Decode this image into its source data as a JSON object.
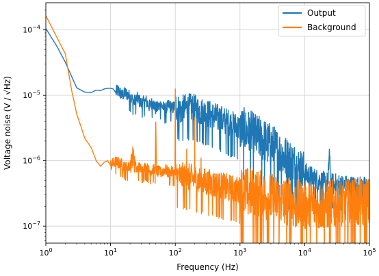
{
  "colors": {
    "output": "#1f77b4",
    "background": "#ff7f0e",
    "grid": "#d0d0d0",
    "axis": "#000000"
  },
  "chart_data": {
    "type": "line",
    "xlabel": "Frequency (Hz)",
    "ylabel": "Voltage noise (V / √Hz)",
    "xscale": "log",
    "yscale": "log",
    "xlim": [
      1,
      100000
    ],
    "ylim": [
      5.5e-08,
      0.00026
    ],
    "grid": true,
    "legend_position": "top-right",
    "x_ticks": [
      {
        "value": 1,
        "base": "10",
        "exp": "0"
      },
      {
        "value": 10,
        "base": "10",
        "exp": "1"
      },
      {
        "value": 100,
        "base": "10",
        "exp": "2"
      },
      {
        "value": 1000,
        "base": "10",
        "exp": "3"
      },
      {
        "value": 10000,
        "base": "10",
        "exp": "4"
      },
      {
        "value": 100000,
        "base": "10",
        "exp": "5"
      }
    ],
    "y_ticks": [
      {
        "value": 1e-07,
        "base": "10",
        "exp": "−7"
      },
      {
        "value": 1e-06,
        "base": "10",
        "exp": "−6"
      },
      {
        "value": 1e-05,
        "base": "10",
        "exp": "−5"
      },
      {
        "value": 0.0001,
        "base": "10",
        "exp": "−4"
      }
    ],
    "series": [
      {
        "name": "Output",
        "color": "#1f77b4",
        "points": [
          [
            1,
            0.000105
          ],
          [
            1.5,
            5.5e-05
          ],
          [
            2,
            3.2e-05
          ],
          [
            3,
            1.3e-05
          ],
          [
            4,
            1.12e-05
          ],
          [
            5,
            1.1e-05
          ],
          [
            6,
            1.2e-05
          ],
          [
            7,
            1.18e-05
          ],
          [
            8,
            1.25e-05
          ],
          [
            9,
            1.28e-05
          ],
          [
            10,
            1.28e-05
          ],
          [
            11,
            1.25e-05
          ],
          [
            12,
            1.1e-05
          ],
          [
            13,
            1.2e-05
          ],
          [
            15,
            1e-05
          ],
          [
            17,
            1.08e-05
          ],
          [
            20,
            9.5e-06
          ],
          [
            23,
            8e-06
          ],
          [
            26,
            9e-06
          ],
          [
            30,
            7.5e-06
          ],
          [
            35,
            8.2e-06
          ],
          [
            40,
            6.8e-06
          ],
          [
            45,
            7.8e-06
          ],
          [
            50,
            6.2e-06
          ],
          [
            60,
            7.2e-06
          ],
          [
            70,
            6e-06
          ],
          [
            80,
            7e-06
          ],
          [
            90,
            6.3e-06
          ],
          [
            100,
            6.9e-06
          ],
          [
            120,
            5.8e-06
          ],
          [
            150,
            6.5e-06
          ],
          [
            200,
            6.2e-06
          ],
          [
            250,
            5.6e-06
          ],
          [
            300,
            5.3e-06
          ],
          [
            400,
            4.7e-06
          ],
          [
            500,
            4.3e-06
          ],
          [
            600,
            3.9e-06
          ],
          [
            800,
            3.4e-06
          ],
          [
            1000,
            3.1e-06
          ],
          [
            1500,
            2.6e-06
          ],
          [
            2000,
            2.2e-06
          ],
          [
            3000,
            1.7e-06
          ],
          [
            4000,
            1.35e-06
          ],
          [
            5000,
            1.1e-06
          ],
          [
            7000,
            8.5e-07
          ],
          [
            10000,
            6.3e-07
          ],
          [
            15000,
            5.1e-07
          ],
          [
            20000,
            4.6e-07
          ],
          [
            23000,
            4.5e-07
          ],
          [
            24000,
            1.5e-06
          ],
          [
            25000,
            4.4e-07
          ],
          [
            30000,
            4.3e-07
          ],
          [
            40000,
            4.1e-07
          ],
          [
            50000,
            4e-07
          ],
          [
            70000,
            3.9e-07
          ],
          [
            100000,
            3.8e-07
          ]
        ],
        "noise": [
          {
            "x": [
              12,
              100
            ],
            "width": 0.2
          },
          {
            "x": [
              100,
              1000
            ],
            "width": 0.45
          },
          {
            "x": [
              1000,
              10000
            ],
            "width": 0.7
          },
          {
            "x": [
              10000,
              100000
            ],
            "width": 0.35
          }
        ]
      },
      {
        "name": "Background",
        "color": "#ff7f0e",
        "points": [
          [
            1,
            0.000165
          ],
          [
            1.5,
            7.5e-05
          ],
          [
            2,
            4.3e-05
          ],
          [
            2.5,
            1.2e-05
          ],
          [
            3,
            5.2e-06
          ],
          [
            3.5,
            3.3e-06
          ],
          [
            4,
            2.2e-06
          ],
          [
            5,
            1.6e-06
          ],
          [
            6,
            1e-06
          ],
          [
            7,
            8.2e-07
          ],
          [
            8,
            9.5e-07
          ],
          [
            9,
            1e-06
          ],
          [
            10,
            8.5e-07
          ],
          [
            12,
            9.6e-07
          ],
          [
            15,
            8.8e-07
          ],
          [
            18,
            7.6e-07
          ],
          [
            20,
            8.5e-07
          ],
          [
            22,
            1.4e-06
          ],
          [
            25,
            7.2e-07
          ],
          [
            28,
            8e-07
          ],
          [
            30,
            7e-07
          ],
          [
            35,
            8e-07
          ],
          [
            40,
            6.8e-07
          ],
          [
            45,
            7.3e-07
          ],
          [
            49,
            7e-07
          ],
          [
            50,
            3.9e-06
          ],
          [
            51,
            7e-07
          ],
          [
            60,
            6.6e-07
          ],
          [
            70,
            7.4e-07
          ],
          [
            80,
            6.4e-07
          ],
          [
            90,
            6.8e-07
          ],
          [
            99,
            6.2e-07
          ],
          [
            100,
            1.25e-05
          ],
          [
            101,
            6e-07
          ],
          [
            120,
            5.7e-07
          ],
          [
            149,
            5.5e-07
          ],
          [
            150,
            1.5e-06
          ],
          [
            151,
            5.5e-07
          ],
          [
            199,
            5.2e-07
          ],
          [
            200,
            4.6e-06
          ],
          [
            201,
            5.2e-07
          ],
          [
            249,
            4.8e-07
          ],
          [
            250,
            1.1e-06
          ],
          [
            251,
            4.8e-07
          ],
          [
            300,
            4.6e-07
          ],
          [
            400,
            4.3e-07
          ],
          [
            500,
            4e-07
          ],
          [
            700,
            3.7e-07
          ],
          [
            1000,
            3.4e-07
          ],
          [
            1500,
            3.1e-07
          ],
          [
            2000,
            2.9e-07
          ],
          [
            3000,
            2.6e-07
          ],
          [
            5000,
            2.3e-07
          ],
          [
            7000,
            2.1e-07
          ],
          [
            10000,
            2e-07
          ],
          [
            15000,
            2e-07
          ],
          [
            20000,
            2.05e-07
          ],
          [
            30000,
            2.1e-07
          ],
          [
            50000,
            2.15e-07
          ],
          [
            100000,
            2.2e-07
          ]
        ],
        "noise": [
          {
            "x": [
              10,
              100
            ],
            "width": 0.18
          },
          {
            "x": [
              100,
              1000
            ],
            "width": 0.45
          },
          {
            "x": [
              1000,
              100000
            ],
            "width": 0.8
          }
        ]
      }
    ]
  }
}
